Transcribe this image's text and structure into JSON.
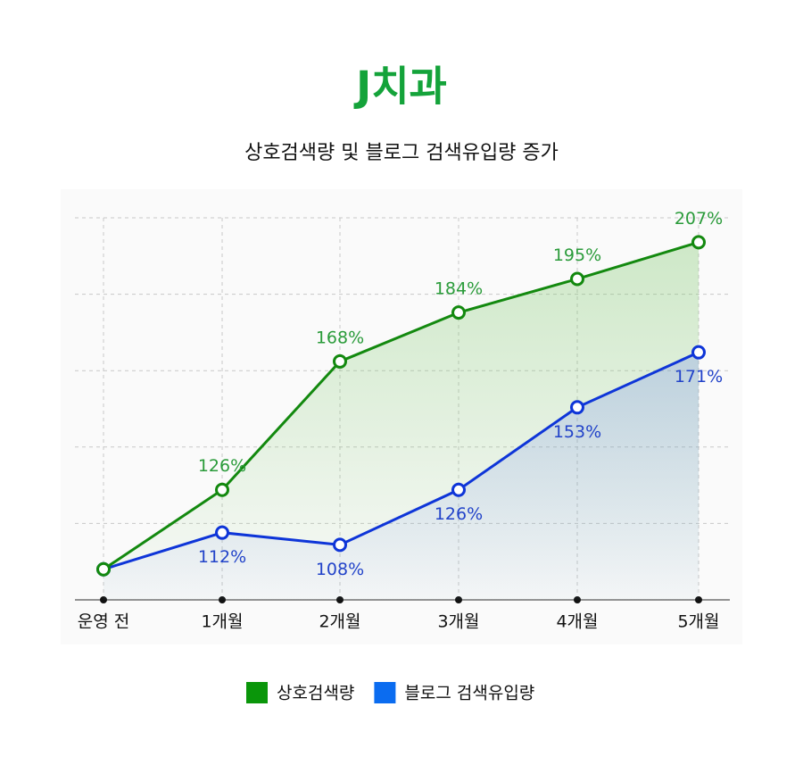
{
  "chart_data": {
    "type": "line",
    "title": "J치과",
    "subtitle": "상호검색량 및 블로그 검색유입량 증가",
    "categories": [
      "운영 전",
      "1개월",
      "2개월",
      "3개월",
      "4개월",
      "5개월"
    ],
    "series": [
      {
        "name": "상호검색량",
        "color": "#13890f",
        "label_color": "#2a9b3a",
        "label_position": "above",
        "values": [
          100,
          126,
          168,
          184,
          195,
          207
        ],
        "value_labels": [
          null,
          "126%",
          "168%",
          "184%",
          "195%",
          "207%"
        ]
      },
      {
        "name": "블로그 검색유입량",
        "color": "#0e35d8",
        "label_color": "#2243c9",
        "label_position": "below",
        "values": [
          100,
          112,
          108,
          126,
          153,
          171
        ],
        "value_labels": [
          null,
          "112%",
          "108%",
          "126%",
          "153%",
          "171%"
        ]
      }
    ],
    "legend_colors": [
      "#0a960a",
      "#0b6cf0"
    ],
    "ylim": [
      90,
      215
    ],
    "yticks": [
      115,
      140,
      165,
      190,
      215
    ],
    "grid": true,
    "legend": "bottom"
  }
}
